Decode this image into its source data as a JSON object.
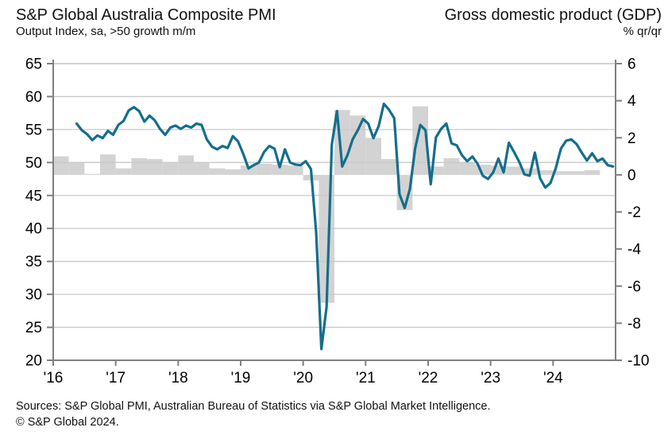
{
  "header": {
    "left_title": "S&P Global Australia Composite PMI",
    "left_subtitle": "Output Index, sa, >50 growth m/m",
    "right_title": "Gross domestic product (GDP)",
    "right_subtitle": "% qr/qr"
  },
  "footer": {
    "sources": "Sources: S&P Global PMI, Australian Bureau of Statistics via S&P Global Market Intelligence.",
    "copyright": "© S&P Global 2024."
  },
  "chart_data": {
    "type": "line+bar",
    "title_left": "S&P Global Australia Composite PMI",
    "title_right": "Gross domestic product (GDP)",
    "left_axis": {
      "label": "Output Index, sa, >50 growth m/m",
      "min": 20,
      "max": 65,
      "ticks": [
        65,
        60,
        55,
        50,
        45,
        40,
        35,
        30,
        25,
        20
      ]
    },
    "right_axis": {
      "label": "% qr/qr",
      "min": -10,
      "max": 6,
      "ticks": [
        6,
        4,
        2,
        0,
        -2,
        -4,
        -6,
        -8,
        -10
      ]
    },
    "x_axis": {
      "start_year": 2016,
      "end_year": 2025,
      "tick_years": [
        2016,
        2017,
        2018,
        2019,
        2020,
        2021,
        2022,
        2023,
        2024
      ],
      "tick_labels": [
        "'16",
        "'17",
        "'18",
        "'19",
        "'20",
        "'21",
        "'22",
        "'23",
        "'24"
      ]
    },
    "grid": true,
    "legend": "none",
    "series": [
      {
        "name": "Composite PMI Output Index",
        "type": "line",
        "axis": "left",
        "color": "#146e8c",
        "frequency": "monthly",
        "start": "2016-05",
        "values": [
          55.9,
          54.9,
          54.3,
          53.4,
          54.1,
          53.7,
          54.8,
          54.2,
          55.7,
          56.3,
          57.9,
          58.4,
          57.8,
          56.2,
          57.1,
          56.4,
          55.1,
          54.2,
          55.3,
          55.6,
          55.1,
          55.6,
          55.3,
          55.9,
          55.7,
          53.5,
          52.4,
          52.0,
          52.5,
          52.2,
          54.0,
          53.2,
          51.3,
          49.1,
          49.6,
          50.0,
          51.6,
          52.5,
          52.1,
          49.3,
          52.0,
          50.0,
          49.7,
          49.6,
          50.2,
          49.0,
          39.4,
          21.7,
          28.1,
          52.7,
          57.8,
          49.4,
          51.1,
          53.5,
          54.9,
          56.6,
          55.9,
          53.7,
          55.5,
          58.9,
          58.0,
          56.7,
          45.2,
          43.1,
          46.0,
          52.1,
          55.7,
          54.9,
          46.7,
          53.8,
          55.1,
          55.9,
          52.9,
          52.6,
          51.1,
          50.2,
          50.9,
          49.8,
          48.0,
          47.5,
          48.5,
          50.6,
          48.5,
          53.0,
          51.6,
          50.1,
          48.2,
          48.0,
          51.5,
          47.6,
          46.2,
          46.9,
          49.1,
          52.1,
          53.3,
          53.5,
          52.8,
          51.5,
          50.3,
          51.4,
          50.2,
          50.6,
          49.6,
          49.4
        ]
      },
      {
        "name": "GDP % qr/qr",
        "type": "bar",
        "axis": "right",
        "color": "#d3d3d3",
        "frequency": "quarterly",
        "start": "2016-Q1",
        "values": [
          1.0,
          0.7,
          0.05,
          1.1,
          0.35,
          0.9,
          0.85,
          0.65,
          1.05,
          0.65,
          0.35,
          0.3,
          0.5,
          0.6,
          0.55,
          0.5,
          -0.3,
          -6.9,
          3.5,
          3.2,
          2.0,
          0.85,
          -1.9,
          3.7,
          0.45,
          0.9,
          0.7,
          0.55,
          0.5,
          0.45,
          0.35,
          0.25,
          0.2,
          0.2,
          0.25
        ]
      }
    ],
    "colors": {
      "line": "#146e8c",
      "bar": "#d3d3d3",
      "gridline": "#c9c9c9",
      "axis": "#7f7f7f",
      "top_border": "#b4b4b4"
    }
  }
}
